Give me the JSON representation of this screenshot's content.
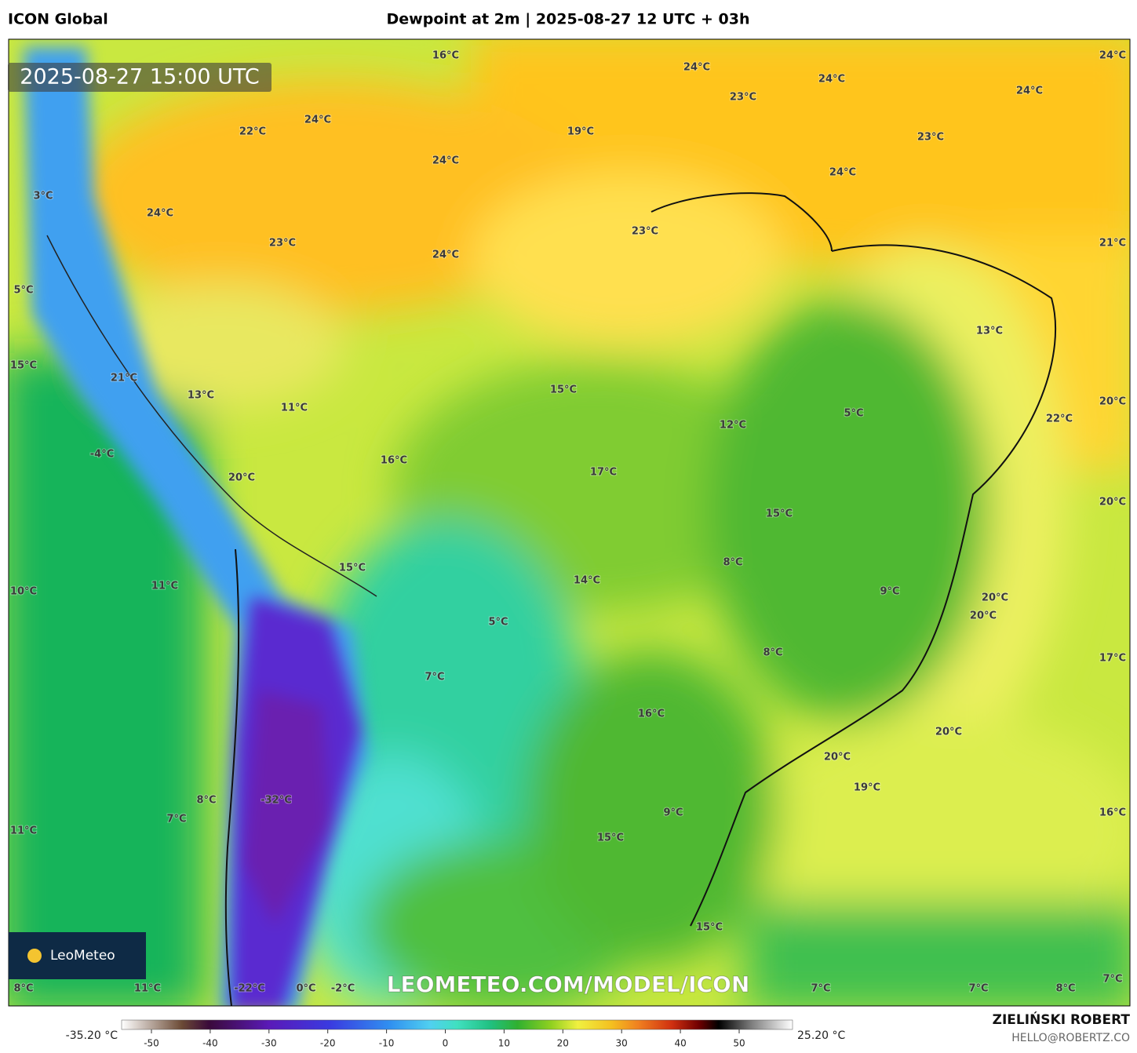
{
  "header": {
    "model": "ICON Global",
    "title": "Dewpoint at 2m | 2025-08-27 12 UTC + 03h"
  },
  "map": {
    "timestamp": "2025-08-27 15:00 UTC",
    "watermark": "LEOMETEO.COM/MODEL/ICON",
    "logo": "LeoMeteo",
    "labels": [
      "16°C",
      "24°C",
      "24°C",
      "24°C",
      "23°C",
      "24°C",
      "24°C",
      "22°C",
      "19°C",
      "23°C",
      "24°C",
      "24°C",
      "3°C",
      "24°C",
      "23°C",
      "23°C",
      "24°C",
      "21°C",
      "5°C",
      "13°C",
      "15°C",
      "21°C",
      "15°C",
      "13°C",
      "11°C",
      "20°C",
      "5°C",
      "22°C",
      "12°C",
      "-4°C",
      "16°C",
      "17°C",
      "20°C",
      "20°C",
      "15°C",
      "8°C",
      "15°C",
      "14°C",
      "11°C",
      "10°C",
      "9°C",
      "20°C",
      "20°C",
      "5°C",
      "8°C",
      "17°C",
      "7°C",
      "16°C",
      "20°C",
      "20°C",
      "19°C",
      "8°C",
      "-32°C",
      "7°C",
      "9°C",
      "16°C",
      "11°C",
      "15°C",
      "15°C",
      "8°C",
      "11°C",
      "-22°C",
      "0°C",
      "-2°C",
      "7°C",
      "7°C",
      "8°C",
      "7°C"
    ]
  },
  "colorbar": {
    "min_label": "-35.20 °C",
    "max_label": "25.20 °C",
    "ticks": [
      -50,
      -40,
      -30,
      -20,
      -10,
      0,
      10,
      20,
      30,
      40,
      50
    ]
  },
  "footer": {
    "author": "ZIELIŃSKI ROBERT",
    "email": "HELLO@ROBERTZ.CO"
  }
}
